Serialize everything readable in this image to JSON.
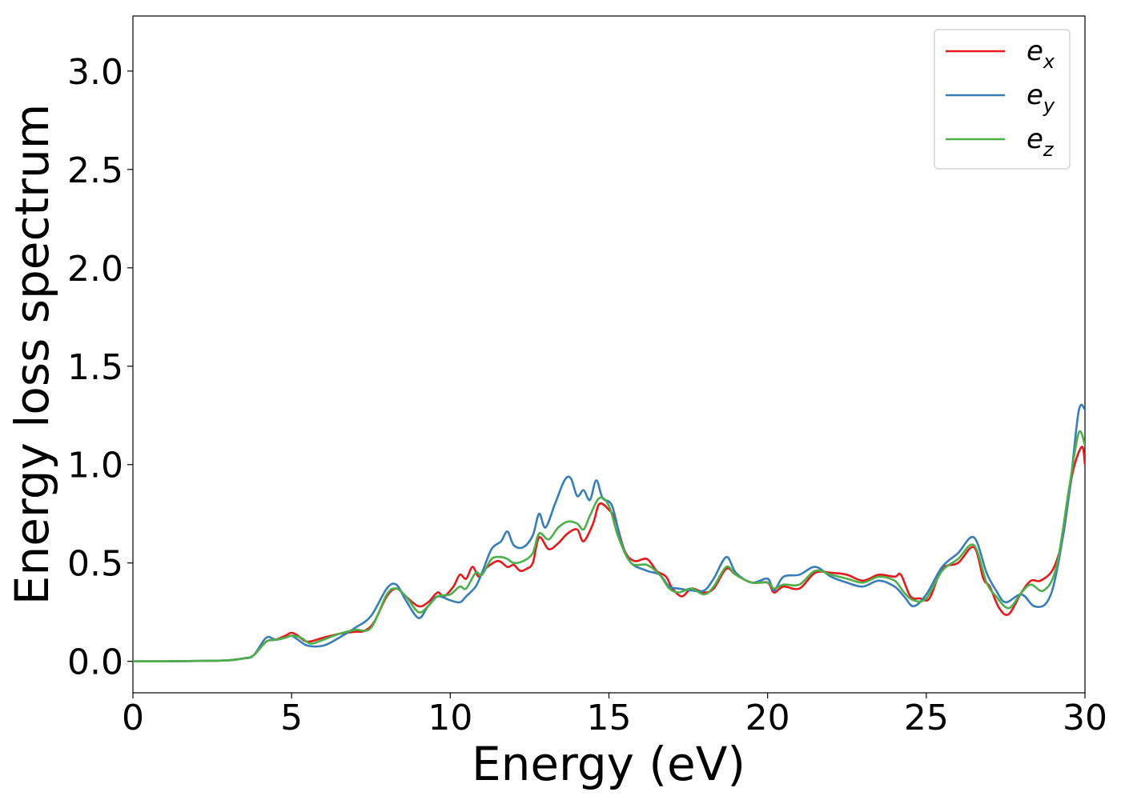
{
  "chart_data": {
    "type": "line",
    "xlabel": "Energy (eV)",
    "ylabel": "Energy loss spectrum",
    "xlim": [
      0,
      30
    ],
    "ylim": [
      -0.16,
      3.28
    ],
    "xticks": [
      0,
      5,
      10,
      15,
      20,
      25,
      30
    ],
    "xtick_labels": [
      "0",
      "5",
      "10",
      "15",
      "20",
      "25",
      "30"
    ],
    "yticks": [
      0.0,
      0.5,
      1.0,
      1.5,
      2.0,
      2.5,
      3.0
    ],
    "ytick_labels": [
      "0.0",
      "0.5",
      "1.0",
      "1.5",
      "2.0",
      "2.5",
      "3.0"
    ],
    "grid": false,
    "legend_position": "top-right",
    "series": [
      {
        "name": "e",
        "name_sub": "x",
        "color": "#e41a1c",
        "points": [
          [
            0,
            0
          ],
          [
            1,
            0
          ],
          [
            2,
            0.002
          ],
          [
            3,
            0.005
          ],
          [
            3.5,
            0.015
          ],
          [
            3.8,
            0.03
          ],
          [
            4.2,
            0.1
          ],
          [
            4.5,
            0.11
          ],
          [
            4.8,
            0.13
          ],
          [
            5,
            0.145
          ],
          [
            5.2,
            0.13
          ],
          [
            5.5,
            0.1
          ],
          [
            6,
            0.12
          ],
          [
            6.5,
            0.14
          ],
          [
            7,
            0.15
          ],
          [
            7.3,
            0.155
          ],
          [
            7.6,
            0.2
          ],
          [
            8,
            0.33
          ],
          [
            8.3,
            0.37
          ],
          [
            8.6,
            0.33
          ],
          [
            9,
            0.28
          ],
          [
            9.3,
            0.3
          ],
          [
            9.6,
            0.35
          ],
          [
            9.8,
            0.33
          ],
          [
            10.1,
            0.38
          ],
          [
            10.3,
            0.44
          ],
          [
            10.5,
            0.42
          ],
          [
            10.7,
            0.48
          ],
          [
            10.9,
            0.43
          ],
          [
            11.1,
            0.47
          ],
          [
            11.5,
            0.51
          ],
          [
            11.8,
            0.48
          ],
          [
            12,
            0.49
          ],
          [
            12.2,
            0.46
          ],
          [
            12.4,
            0.47
          ],
          [
            12.6,
            0.5
          ],
          [
            12.8,
            0.63
          ],
          [
            13.1,
            0.57
          ],
          [
            13.4,
            0.6
          ],
          [
            13.7,
            0.65
          ],
          [
            14,
            0.67
          ],
          [
            14.2,
            0.61
          ],
          [
            14.5,
            0.7
          ],
          [
            14.7,
            0.8
          ],
          [
            15,
            0.77
          ],
          [
            15.2,
            0.72
          ],
          [
            15.5,
            0.56
          ],
          [
            15.8,
            0.51
          ],
          [
            16.2,
            0.52
          ],
          [
            16.5,
            0.46
          ],
          [
            16.8,
            0.43
          ],
          [
            17,
            0.37
          ],
          [
            17.3,
            0.33
          ],
          [
            17.6,
            0.37
          ],
          [
            18,
            0.35
          ],
          [
            18.3,
            0.37
          ],
          [
            18.7,
            0.47
          ],
          [
            19,
            0.44
          ],
          [
            19.5,
            0.4
          ],
          [
            20,
            0.4
          ],
          [
            20.2,
            0.35
          ],
          [
            20.5,
            0.38
          ],
          [
            21,
            0.37
          ],
          [
            21.5,
            0.45
          ],
          [
            22,
            0.45
          ],
          [
            22.5,
            0.44
          ],
          [
            23,
            0.41
          ],
          [
            23.5,
            0.44
          ],
          [
            24,
            0.43
          ],
          [
            24.2,
            0.44
          ],
          [
            24.5,
            0.33
          ],
          [
            24.8,
            0.32
          ],
          [
            25.1,
            0.32
          ],
          [
            25.5,
            0.47
          ],
          [
            26,
            0.5
          ],
          [
            26.5,
            0.58
          ],
          [
            26.8,
            0.42
          ],
          [
            27,
            0.38
          ],
          [
            27.3,
            0.27
          ],
          [
            27.6,
            0.24
          ],
          [
            28,
            0.35
          ],
          [
            28.3,
            0.41
          ],
          [
            28.6,
            0.41
          ],
          [
            29,
            0.47
          ],
          [
            29.3,
            0.63
          ],
          [
            29.6,
            0.95
          ],
          [
            29.9,
            1.09
          ],
          [
            30,
            1.0
          ]
        ]
      },
      {
        "name": "e",
        "name_sub": "y",
        "color": "#377eb8",
        "points": [
          [
            0,
            0
          ],
          [
            1,
            0
          ],
          [
            2,
            0.002
          ],
          [
            3,
            0.005
          ],
          [
            3.5,
            0.015
          ],
          [
            3.8,
            0.03
          ],
          [
            4.2,
            0.12
          ],
          [
            4.5,
            0.11
          ],
          [
            4.8,
            0.12
          ],
          [
            5,
            0.13
          ],
          [
            5.2,
            0.11
          ],
          [
            5.5,
            0.08
          ],
          [
            6,
            0.08
          ],
          [
            6.5,
            0.12
          ],
          [
            7,
            0.17
          ],
          [
            7.5,
            0.23
          ],
          [
            8,
            0.37
          ],
          [
            8.3,
            0.39
          ],
          [
            8.6,
            0.31
          ],
          [
            9,
            0.22
          ],
          [
            9.3,
            0.28
          ],
          [
            9.6,
            0.33
          ],
          [
            10,
            0.31
          ],
          [
            10.3,
            0.3
          ],
          [
            10.5,
            0.33
          ],
          [
            10.8,
            0.38
          ],
          [
            11,
            0.45
          ],
          [
            11.3,
            0.57
          ],
          [
            11.6,
            0.61
          ],
          [
            11.8,
            0.66
          ],
          [
            12,
            0.59
          ],
          [
            12.3,
            0.58
          ],
          [
            12.6,
            0.64
          ],
          [
            12.8,
            0.75
          ],
          [
            13,
            0.68
          ],
          [
            13.3,
            0.8
          ],
          [
            13.6,
            0.92
          ],
          [
            13.8,
            0.93
          ],
          [
            14,
            0.84
          ],
          [
            14.2,
            0.87
          ],
          [
            14.4,
            0.82
          ],
          [
            14.6,
            0.92
          ],
          [
            14.8,
            0.83
          ],
          [
            15.1,
            0.79
          ],
          [
            15.4,
            0.6
          ],
          [
            15.7,
            0.5
          ],
          [
            16.2,
            0.46
          ],
          [
            16.6,
            0.44
          ],
          [
            16.9,
            0.38
          ],
          [
            17.2,
            0.37
          ],
          [
            17.6,
            0.36
          ],
          [
            18,
            0.36
          ],
          [
            18.3,
            0.42
          ],
          [
            18.7,
            0.53
          ],
          [
            19,
            0.45
          ],
          [
            19.5,
            0.4
          ],
          [
            20,
            0.42
          ],
          [
            20.2,
            0.36
          ],
          [
            20.5,
            0.43
          ],
          [
            21,
            0.44
          ],
          [
            21.5,
            0.48
          ],
          [
            22,
            0.43
          ],
          [
            22.5,
            0.4
          ],
          [
            23,
            0.38
          ],
          [
            23.5,
            0.41
          ],
          [
            24,
            0.38
          ],
          [
            24.3,
            0.33
          ],
          [
            24.6,
            0.28
          ],
          [
            25,
            0.34
          ],
          [
            25.5,
            0.48
          ],
          [
            26,
            0.55
          ],
          [
            26.5,
            0.63
          ],
          [
            26.9,
            0.45
          ],
          [
            27.2,
            0.36
          ],
          [
            27.5,
            0.3
          ],
          [
            28,
            0.34
          ],
          [
            28.4,
            0.28
          ],
          [
            28.8,
            0.3
          ],
          [
            29.1,
            0.45
          ],
          [
            29.5,
            0.85
          ],
          [
            29.8,
            1.27
          ],
          [
            30,
            1.28
          ]
        ]
      },
      {
        "name": "e",
        "name_sub": "z",
        "color": "#4daf4a",
        "points": [
          [
            0,
            0
          ],
          [
            1,
            0
          ],
          [
            2,
            0.002
          ],
          [
            3,
            0.005
          ],
          [
            3.5,
            0.015
          ],
          [
            3.8,
            0.03
          ],
          [
            4.2,
            0.1
          ],
          [
            4.5,
            0.11
          ],
          [
            4.8,
            0.12
          ],
          [
            5,
            0.13
          ],
          [
            5.3,
            0.12
          ],
          [
            5.6,
            0.09
          ],
          [
            6,
            0.11
          ],
          [
            6.5,
            0.14
          ],
          [
            7,
            0.16
          ],
          [
            7.5,
            0.17
          ],
          [
            8,
            0.34
          ],
          [
            8.3,
            0.37
          ],
          [
            8.6,
            0.33
          ],
          [
            9,
            0.25
          ],
          [
            9.3,
            0.28
          ],
          [
            9.6,
            0.33
          ],
          [
            10,
            0.34
          ],
          [
            10.3,
            0.38
          ],
          [
            10.5,
            0.37
          ],
          [
            10.8,
            0.45
          ],
          [
            11,
            0.44
          ],
          [
            11.3,
            0.52
          ],
          [
            11.6,
            0.53
          ],
          [
            11.8,
            0.52
          ],
          [
            12,
            0.5
          ],
          [
            12.3,
            0.51
          ],
          [
            12.6,
            0.55
          ],
          [
            12.8,
            0.65
          ],
          [
            13.1,
            0.62
          ],
          [
            13.4,
            0.68
          ],
          [
            13.7,
            0.71
          ],
          [
            14,
            0.7
          ],
          [
            14.2,
            0.67
          ],
          [
            14.4,
            0.74
          ],
          [
            14.7,
            0.83
          ],
          [
            15,
            0.79
          ],
          [
            15.3,
            0.63
          ],
          [
            15.7,
            0.5
          ],
          [
            16.2,
            0.49
          ],
          [
            16.6,
            0.44
          ],
          [
            16.9,
            0.37
          ],
          [
            17.2,
            0.35
          ],
          [
            17.6,
            0.37
          ],
          [
            18,
            0.34
          ],
          [
            18.3,
            0.38
          ],
          [
            18.7,
            0.48
          ],
          [
            19,
            0.44
          ],
          [
            19.5,
            0.4
          ],
          [
            20,
            0.4
          ],
          [
            20.2,
            0.37
          ],
          [
            20.5,
            0.39
          ],
          [
            21,
            0.39
          ],
          [
            21.5,
            0.46
          ],
          [
            22,
            0.44
          ],
          [
            22.5,
            0.42
          ],
          [
            23,
            0.4
          ],
          [
            23.5,
            0.43
          ],
          [
            24,
            0.41
          ],
          [
            24.3,
            0.35
          ],
          [
            24.6,
            0.31
          ],
          [
            25,
            0.32
          ],
          [
            25.5,
            0.46
          ],
          [
            26,
            0.52
          ],
          [
            26.5,
            0.59
          ],
          [
            26.9,
            0.4
          ],
          [
            27.2,
            0.33
          ],
          [
            27.6,
            0.27
          ],
          [
            28,
            0.35
          ],
          [
            28.3,
            0.39
          ],
          [
            28.7,
            0.36
          ],
          [
            29.1,
            0.48
          ],
          [
            29.5,
            0.88
          ],
          [
            29.8,
            1.16
          ],
          [
            30,
            1.1
          ]
        ]
      }
    ]
  }
}
